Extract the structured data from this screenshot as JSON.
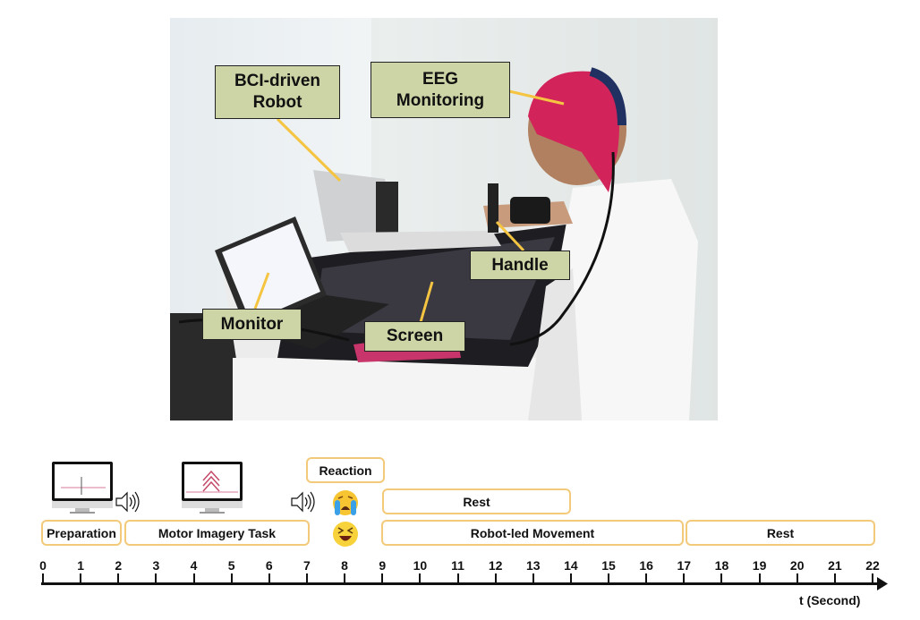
{
  "photo": {
    "labels": {
      "robot": "BCI-driven Robot",
      "eeg": "EEG Monitoring",
      "handle": "Handle",
      "monitor": "Monitor",
      "screen": "Screen"
    },
    "label_color": "#cdd5a6",
    "leader_color": "#f5c542"
  },
  "timeline": {
    "phases": {
      "preparation": "Preparation",
      "motor_imagery": "Motor Imagery Task",
      "reaction": "Reaction",
      "rest_upper": "Rest",
      "robot_led": "Robot-led Movement",
      "rest_lower": "Rest"
    },
    "box_border_color": "#f3c97a",
    "icons": [
      "monitor-crosshair-icon",
      "speaker-icon",
      "monitor-arrow-icon",
      "speaker-icon",
      "crying-emoji-icon",
      "laughing-emoji-icon"
    ],
    "axis": {
      "ticks": [
        "0",
        "1",
        "2",
        "3",
        "4",
        "5",
        "6",
        "7",
        "8",
        "9",
        "10",
        "11",
        "12",
        "13",
        "14",
        "15",
        "16",
        "17",
        "18",
        "19",
        "20",
        "21",
        "22"
      ],
      "label": "t (Second)"
    }
  }
}
